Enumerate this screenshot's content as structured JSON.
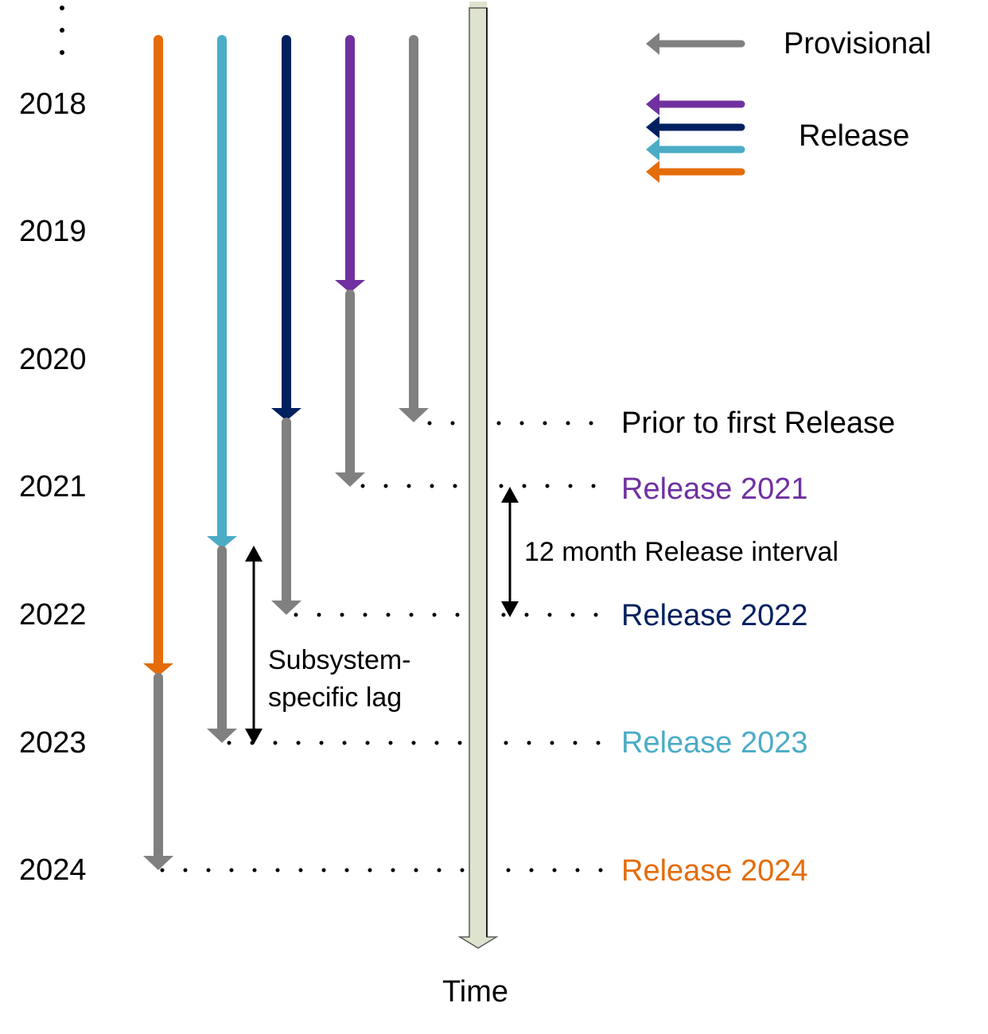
{
  "chart_data": {
    "type": "diagram",
    "title": "",
    "axis": {
      "label": "Time",
      "direction": "down"
    },
    "years": [
      "2018",
      "2019",
      "2020",
      "2021",
      "2022",
      "2023",
      "2024"
    ],
    "ellipsis": "⋮",
    "colors": {
      "provisional": "#808080",
      "release_2021": "#7030A0",
      "release_2022": "#002060",
      "release_2023": "#4BACC6",
      "release_2024": "#E46C0A",
      "timeline_fill": "#DDE3CD",
      "timeline_border": "#5a5a5a"
    },
    "series": [
      {
        "name": "Release 2024",
        "color": "#E46C0A",
        "release_segment": [
          "2018",
          "2022.4"
        ],
        "provisional_segment": [
          "2022.4",
          "2024"
        ]
      },
      {
        "name": "Release 2023",
        "color": "#4BACC6",
        "release_segment": [
          "2018",
          "2021.4"
        ],
        "provisional_segment": [
          "2021.4",
          "2023"
        ]
      },
      {
        "name": "Release 2022",
        "color": "#002060",
        "release_segment": [
          "2018",
          "2020.4"
        ],
        "provisional_segment": [
          "2020.4",
          "2022"
        ]
      },
      {
        "name": "Release 2021",
        "color": "#7030A0",
        "release_segment": [
          "2018",
          "2019.4"
        ],
        "provisional_segment": [
          "2019.4",
          "2021"
        ]
      },
      {
        "name": "Prior to first Release",
        "color": "#808080",
        "release_segment": null,
        "provisional_segment": [
          "2018",
          "2020.4"
        ]
      }
    ]
  },
  "years": [
    "2018",
    "2019",
    "2020",
    "2021",
    "2022",
    "2023",
    "2024"
  ],
  "release_labels": [
    {
      "text": "Prior to first Release",
      "color": "#000000"
    },
    {
      "text": "Release 2021",
      "color": "#7030A0"
    },
    {
      "text": "Release 2022",
      "color": "#002060"
    },
    {
      "text": "Release 2023",
      "color": "#4BACC6"
    },
    {
      "text": "Release 2024",
      "color": "#E46C0A"
    }
  ],
  "annotations": {
    "interval": "12 month Release interval",
    "lag_line1": "Subsystem-",
    "lag_line2": "specific lag"
  },
  "legend": {
    "provisional": "Provisional",
    "release": "Release"
  },
  "axis_label": "Time"
}
